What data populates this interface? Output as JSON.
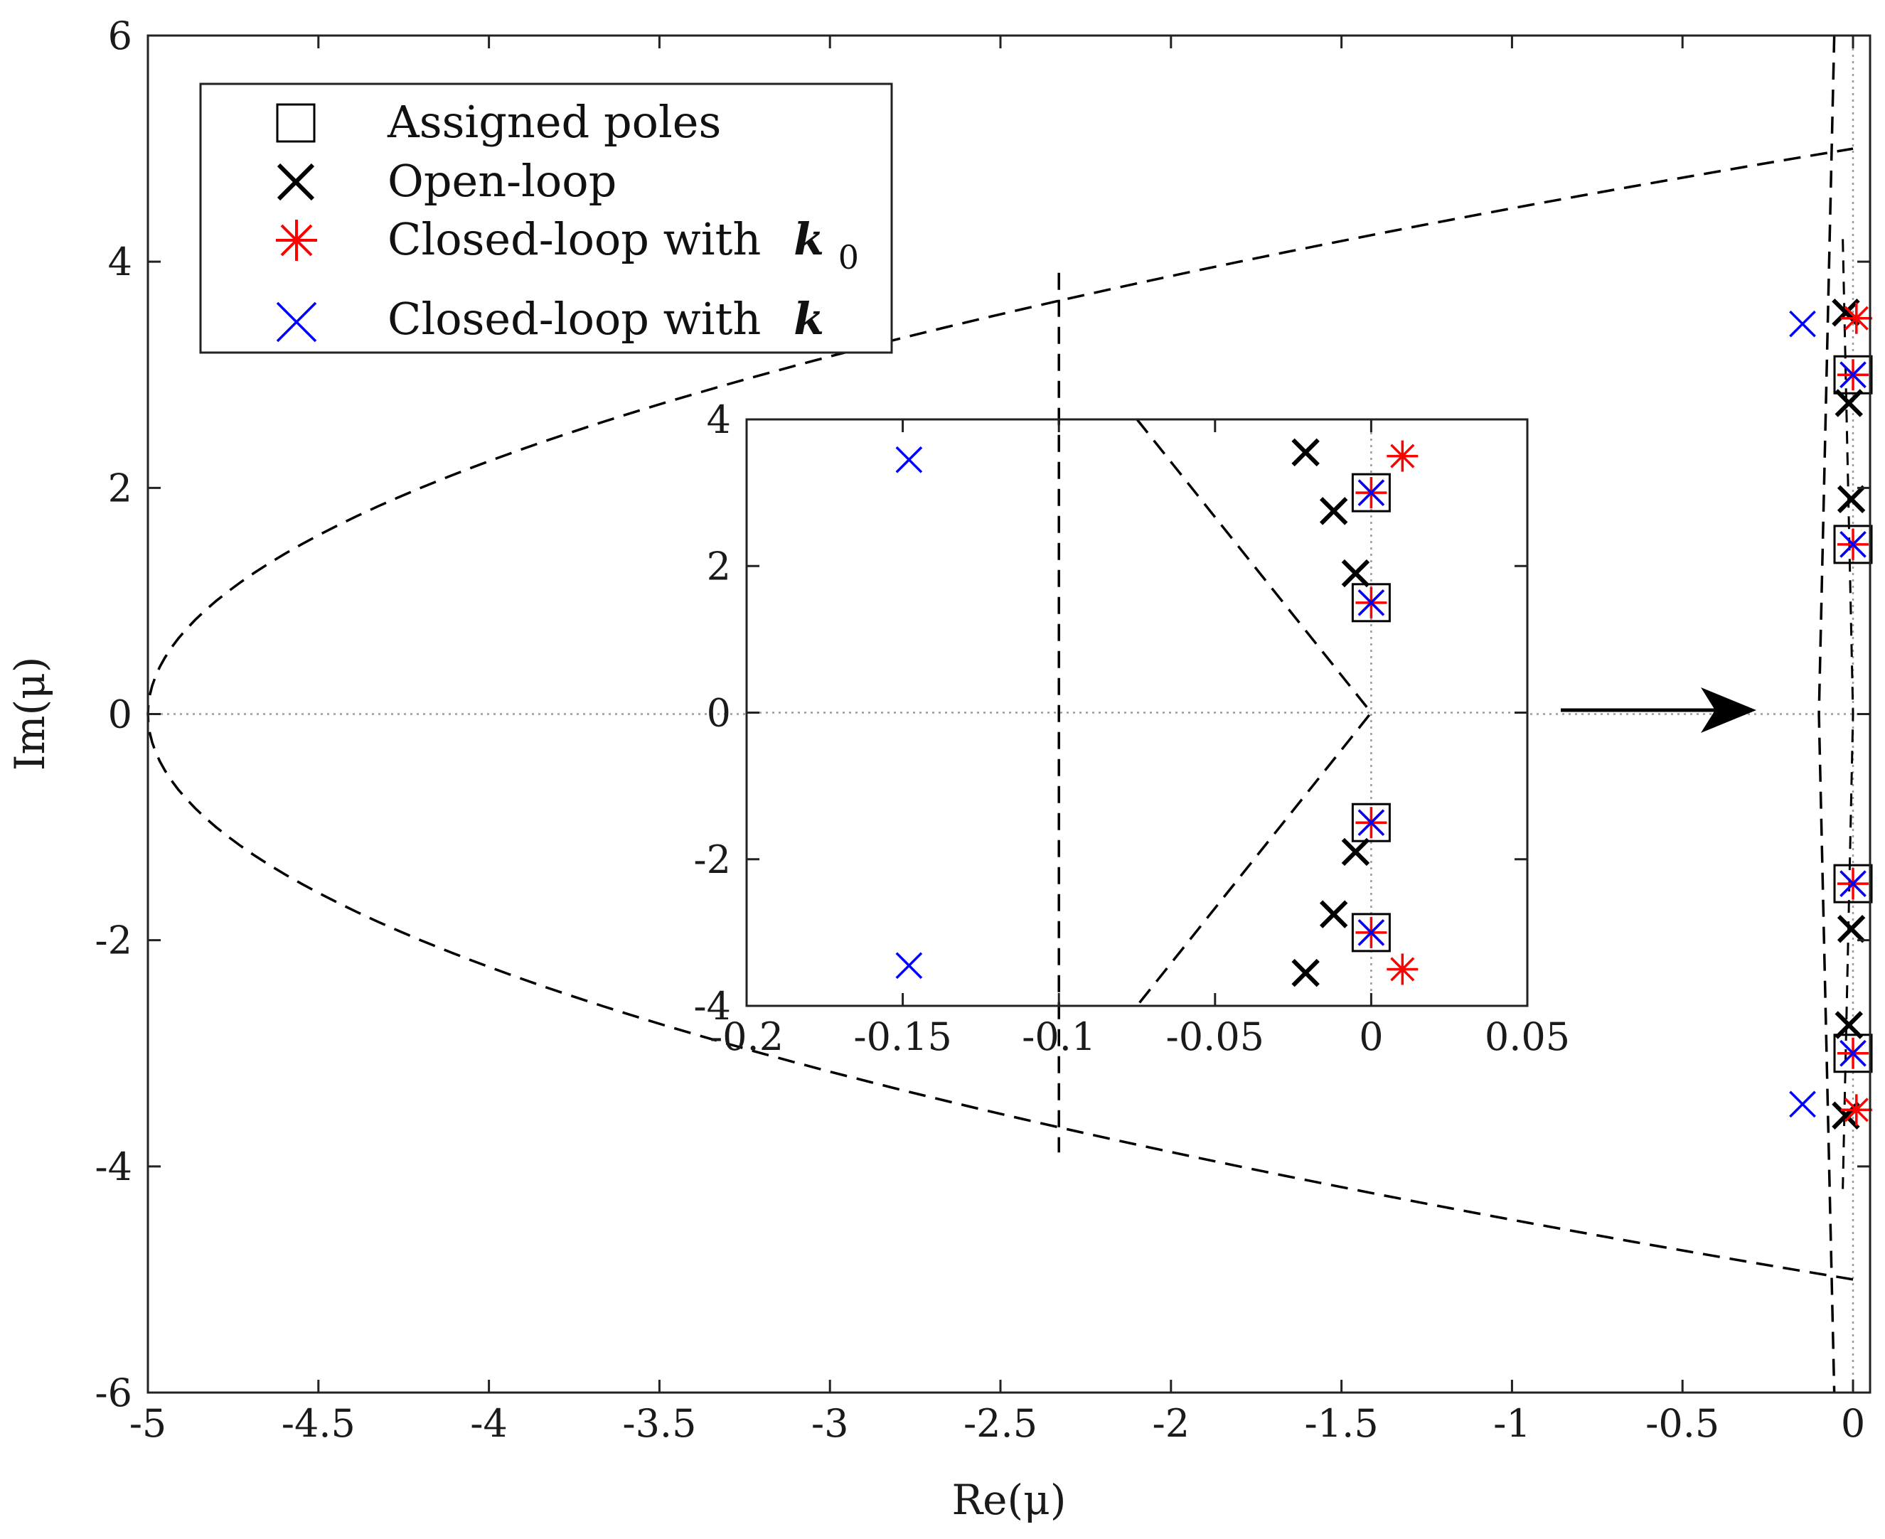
{
  "chart_data": [
    {
      "id": "main",
      "type": "scatter",
      "xlabel": "Re(μ)",
      "ylabel": "Im(μ)",
      "xlim": [
        -5,
        0.05
      ],
      "ylim": [
        -6,
        6
      ],
      "xticks": [
        -5,
        -4.5,
        -4,
        -3.5,
        -3,
        -2.5,
        -2,
        -1.5,
        -1,
        -0.5,
        0
      ],
      "xtick_labels": [
        "-5",
        "-4.5",
        "-4",
        "-3.5",
        "-3",
        "-2.5",
        "-2",
        "-1.5",
        "-1",
        "-0.5",
        "0"
      ],
      "yticks": [
        6,
        4,
        2,
        0,
        -2,
        -4,
        -6
      ],
      "ytick_labels": [
        "6",
        "4",
        "2",
        "0",
        "-2",
        "-4",
        "-6"
      ],
      "legend": {
        "position": "top-left",
        "entries": [
          {
            "label": "Assigned poles",
            "marker": "square",
            "color": "#000000"
          },
          {
            "label": "Open-loop",
            "marker": "x",
            "color": "#000000"
          },
          {
            "label": "Closed-loop with",
            "symbol": "k",
            "subscript": "0",
            "marker": "asterisk",
            "color": "#ff0000"
          },
          {
            "label": "Closed-loop with",
            "symbol": "k",
            "subscript": "",
            "marker": "x",
            "color": "#0000ff"
          }
        ]
      },
      "series": [
        {
          "name": "Assigned poles",
          "marker": "square",
          "color": "#000000",
          "points": [
            [
              0,
              3
            ],
            [
              0,
              1.5
            ],
            [
              0,
              -1.5
            ],
            [
              0,
              -3
            ]
          ]
        },
        {
          "name": "Open-loop",
          "marker": "x",
          "color": "#000000",
          "points": [
            [
              -0.021,
              3.55
            ],
            [
              -0.012,
              2.75
            ],
            [
              -0.005,
              1.9
            ],
            [
              -0.005,
              -1.9
            ],
            [
              -0.012,
              -2.75
            ],
            [
              -0.021,
              -3.55
            ]
          ]
        },
        {
          "name": "Closed-loop with k0",
          "marker": "asterisk",
          "color": "#ff0000",
          "points": [
            [
              0,
              3
            ],
            [
              0,
              1.5
            ],
            [
              0,
              -1.5
            ],
            [
              0,
              -3
            ],
            [
              0.01,
              3.5
            ],
            [
              0.01,
              -3.5
            ]
          ]
        },
        {
          "name": "Closed-loop with k",
          "marker": "x",
          "color": "#0000ff",
          "points": [
            [
              0,
              3
            ],
            [
              0,
              1.5
            ],
            [
              0,
              -1.5
            ],
            [
              0,
              -3
            ],
            [
              -0.148,
              3.45
            ],
            [
              -0.148,
              -3.45
            ]
          ]
        }
      ],
      "boundaries": [
        {
          "name": "parabolic boundary",
          "style": "dashed",
          "points": [
            [
              0,
              5
            ],
            [
              -0.5,
              4.97
            ],
            [
              -1,
              4.86
            ],
            [
              -1.5,
              4.68
            ],
            [
              -2,
              4.43
            ],
            [
              -2.5,
              4.08
            ],
            [
              -3,
              3.62
            ],
            [
              -3.5,
              3.05
            ],
            [
              -4,
              2.35
            ],
            [
              -4.5,
              1.5
            ],
            [
              -4.8,
              0.8
            ],
            [
              -5,
              0
            ],
            [
              -4.8,
              -0.8
            ],
            [
              -4.5,
              -1.5
            ],
            [
              -4,
              -2.35
            ],
            [
              -3.5,
              -3.05
            ],
            [
              -3,
              -3.62
            ],
            [
              -2.5,
              -4.08
            ],
            [
              -2,
              -4.43
            ],
            [
              -1.5,
              -4.68
            ],
            [
              -1,
              -4.86
            ],
            [
              -0.5,
              -4.97
            ],
            [
              0,
              -5
            ]
          ]
        },
        {
          "name": "vertical boundary",
          "style": "dashed",
          "points": [
            [
              -0.1,
              6
            ],
            [
              -0.1,
              -6
            ]
          ]
        },
        {
          "name": "sector boundary",
          "style": "dashed",
          "points": [
            [
              -0.075,
              4
            ],
            [
              0,
              0
            ],
            [
              -0.075,
              -4
            ]
          ]
        }
      ]
    },
    {
      "id": "inset",
      "type": "scatter",
      "xlim": [
        -0.2,
        0.05
      ],
      "ylim": [
        -4,
        4
      ],
      "xticks": [
        -0.2,
        -0.15,
        -0.1,
        -0.05,
        0,
        0.05
      ],
      "xtick_labels": [
        "-0.2",
        "-0.15",
        "-0.1",
        "-0.05",
        "0",
        "0.05"
      ],
      "yticks": [
        4,
        2,
        0,
        -2,
        -4
      ],
      "ytick_labels": [
        "4",
        "2",
        "0",
        "-2",
        "-4"
      ]
    }
  ]
}
